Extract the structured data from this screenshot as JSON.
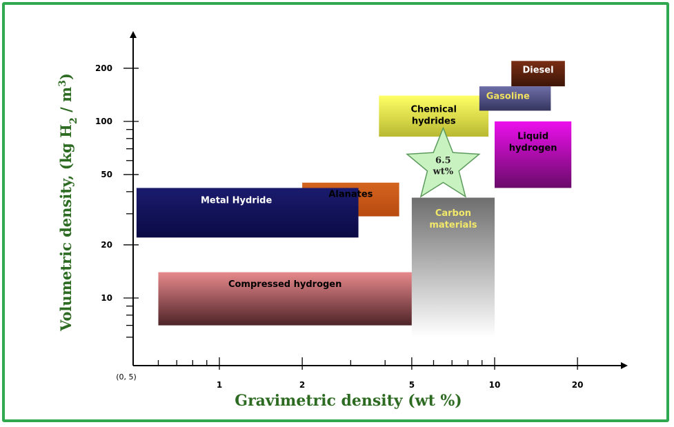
{
  "chart_data": {
    "type": "area",
    "xlabel": "Gravimetric density (wt %)",
    "ylabel_parts": [
      "Volumetric density, (kg H",
      "2",
      " / m",
      "3",
      ")"
    ],
    "x_scale": "log",
    "y_scale": "log",
    "xlim": [
      0.5,
      30
    ],
    "ylim": [
      5,
      260
    ],
    "origin_label": "(0, 5)",
    "x_ticks": [
      {
        "value": 1,
        "label": "1"
      },
      {
        "value": 2,
        "label": "2"
      },
      {
        "value": 5,
        "label": "5"
      },
      {
        "value": 10,
        "label": "10"
      },
      {
        "value": 20,
        "label": "20"
      }
    ],
    "y_ticks": [
      {
        "value": 10,
        "label": "10"
      },
      {
        "value": 20,
        "label": "20"
      },
      {
        "value": 50,
        "label": "50"
      },
      {
        "value": 100,
        "label": "100"
      },
      {
        "value": 200,
        "label": "200"
      }
    ],
    "regions": [
      {
        "name": "Compressed hydrogen",
        "x": [
          0.6,
          5.0
        ],
        "y": [
          7,
          14
        ],
        "colors": [
          "#e7898c",
          "#4e2428"
        ],
        "text_color": "#000000"
      },
      {
        "name": "Metal Hydride",
        "x": [
          0.5,
          3.2
        ],
        "y": [
          22,
          42
        ],
        "colors": [
          "#1b1b6e",
          "#0a0a45"
        ],
        "text_color": "#ffffff"
      },
      {
        "name": "Alanates",
        "x": [
          2.0,
          4.5
        ],
        "y": [
          29,
          45
        ],
        "colors": [
          "#d4641f",
          "#b84a10"
        ],
        "text_color": "#000000"
      },
      {
        "name": "Carbon materials",
        "x": [
          5.0,
          10.0
        ],
        "y": [
          6,
          37
        ],
        "colors": [
          "#6e6e6e",
          "#ffffff"
        ],
        "text_color": "#f2e86a"
      },
      {
        "name": "Chemical hydrides",
        "x": [
          3.8,
          9.5
        ],
        "y": [
          82,
          140
        ],
        "colors": [
          "#ffff66",
          "#b9b932"
        ],
        "text_color": "#000000"
      },
      {
        "name": "Gasoline",
        "x": [
          8.8,
          16.0
        ],
        "y": [
          115,
          158
        ],
        "colors": [
          "#6e6ea8",
          "#35355f"
        ],
        "text_color": "#f0e060"
      },
      {
        "name": "Diesel",
        "x": [
          11.5,
          18.0
        ],
        "y": [
          158,
          220
        ],
        "colors": [
          "#7a2e14",
          "#3d1508"
        ],
        "text_color": "#ffffff"
      },
      {
        "name": "Liquid hydrogen",
        "x": [
          10.0,
          19.0
        ],
        "y": [
          42,
          100
        ],
        "colors": [
          "#ec10ec",
          "#6a0a6a"
        ],
        "text_color": "#000000"
      }
    ],
    "annotation": {
      "lines": [
        "6.5",
        "wt%"
      ],
      "x": 6.5,
      "y": 55,
      "fill": "#c9f2c1",
      "stroke": "#5c9a5c"
    }
  }
}
